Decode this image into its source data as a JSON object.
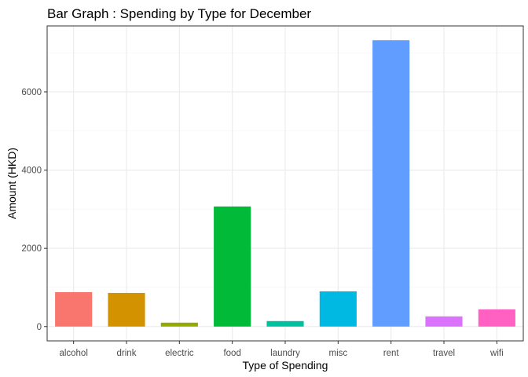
{
  "chart_data": {
    "type": "bar",
    "title": "Bar Graph : Spending by Type for December",
    "xlabel": "Type of Spending",
    "ylabel": "Amount (HKD)",
    "categories": [
      "alcohol",
      "drink",
      "electric",
      "food",
      "laundry",
      "misc",
      "rent",
      "travel",
      "wifi"
    ],
    "values": [
      880,
      860,
      100,
      3070,
      140,
      900,
      7320,
      260,
      440
    ],
    "colors": [
      "#F8766D",
      "#D39200",
      "#93AA00",
      "#00BA38",
      "#00C19F",
      "#00B9E3",
      "#619CFF",
      "#DB72FB",
      "#FF61C3"
    ],
    "yticks": [
      0,
      2000,
      4000,
      6000
    ],
    "ylim": [
      -366,
      7686
    ],
    "grid": true,
    "legend": "none"
  }
}
